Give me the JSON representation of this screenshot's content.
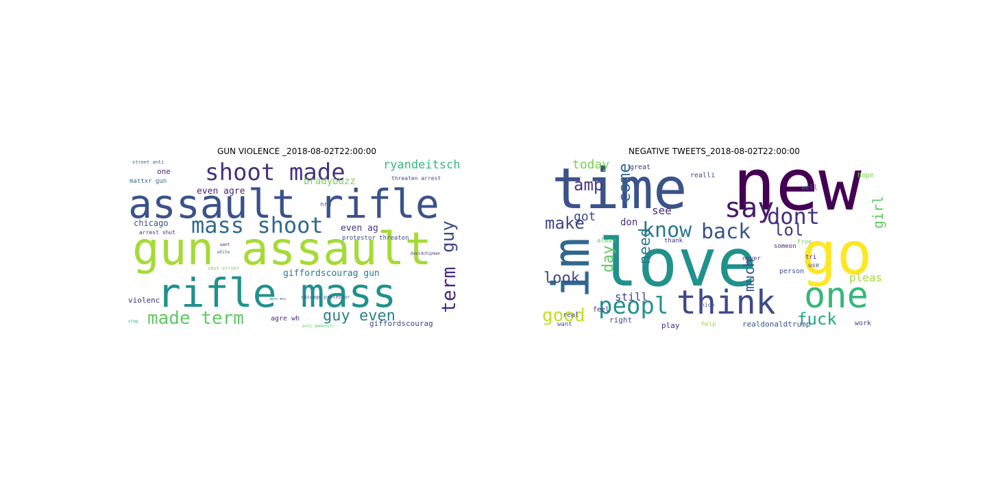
{
  "figure": {
    "left_title": "GUN VIOLENCE _2018-08-02T22:00:00",
    "right_title": "NEGATIVE TWEETS_2018-08-02T22:00:00"
  },
  "clouds": {
    "left": [
      {
        "t": "assault rifle",
        "c": "#3b528b"
      },
      {
        "t": "gun assault",
        "c": "#a5db36"
      },
      {
        "t": "rifle mass",
        "c": "#21918c"
      },
      {
        "t": "shoot made",
        "c": "#46327e"
      },
      {
        "t": "mass shoot",
        "c": "#31688e"
      },
      {
        "t": "made term",
        "c": "#5ec962"
      },
      {
        "t": "guy even",
        "c": "#26828e"
      },
      {
        "t": "term",
        "c": "#472d7b"
      },
      {
        "t": "guy",
        "c": "#3e4a89"
      },
      {
        "t": "ryandeitsch",
        "c": "#35b779"
      },
      {
        "t": "bradybuzz",
        "c": "#7ad151"
      },
      {
        "t": "giffordscourag gun",
        "c": "#2a788e"
      },
      {
        "t": "giffordscourag",
        "c": "#414487"
      },
      {
        "t": "even agre",
        "c": "#482878"
      },
      {
        "t": "even ag",
        "c": "#443983"
      },
      {
        "t": "chicago",
        "c": "#3b528b"
      },
      {
        "t": "protestor threaten",
        "c": "#3e4a89"
      },
      {
        "t": "mattxr gun",
        "c": "#31688e"
      },
      {
        "t": "one",
        "c": "#482878"
      },
      {
        "t": "threaten arrest",
        "c": "#3e4a89"
      },
      {
        "t": "violenc",
        "c": "#46327e"
      },
      {
        "t": "agre wh",
        "c": "#472d7b"
      },
      {
        "t": "chicago protestor",
        "c": "#3b528b"
      },
      {
        "t": "arrest shut",
        "c": "#472d7b"
      },
      {
        "t": "shut street",
        "c": "#7ad151"
      },
      {
        "t": "street anti",
        "c": "#31688e"
      },
      {
        "t": "nra",
        "c": "#3b528b"
      },
      {
        "t": "davidchipman",
        "c": "#46327e"
      },
      {
        "t": "anti demonstr",
        "c": "#5ec962"
      },
      {
        "t": "want",
        "c": "#482878"
      },
      {
        "t": "white",
        "c": "#3b528b"
      },
      {
        "t": "stop",
        "c": "#22a884"
      },
      {
        "t": "agre mnu",
        "c": "#2a788e"
      }
    ],
    "right": [
      {
        "t": "new",
        "c": "#440154"
      },
      {
        "t": "time",
        "c": "#3b528b"
      },
      {
        "t": "love",
        "c": "#21918c"
      },
      {
        "t": "go",
        "c": "#fde725"
      },
      {
        "t": "im",
        "c": "#31688e"
      },
      {
        "t": "one",
        "c": "#35b779"
      },
      {
        "t": "think",
        "c": "#3e4a89"
      },
      {
        "t": "say",
        "c": "#481a6c"
      },
      {
        "t": "dont",
        "c": "#46327e"
      },
      {
        "t": "know",
        "c": "#2a788e"
      },
      {
        "t": "back",
        "c": "#3b528b"
      },
      {
        "t": "peopl",
        "c": "#21918c"
      },
      {
        "t": "lol",
        "c": "#46327e"
      },
      {
        "t": "make",
        "c": "#414487"
      },
      {
        "t": "amp",
        "c": "#443983"
      },
      {
        "t": "good",
        "c": "#c2df23"
      },
      {
        "t": "look",
        "c": "#3e4a89"
      },
      {
        "t": "fuck",
        "c": "#22a884"
      },
      {
        "t": "day",
        "c": "#5ec962"
      },
      {
        "t": "come",
        "c": "#31688e"
      },
      {
        "t": "today",
        "c": "#7ad151"
      },
      {
        "t": "need",
        "c": "#2a788e"
      },
      {
        "t": "much",
        "c": "#3b528b"
      },
      {
        "t": "pleas",
        "c": "#a5db36"
      },
      {
        "t": "girl",
        "c": "#5ec962"
      },
      {
        "t": "got",
        "c": "#3e4a89"
      },
      {
        "t": "still",
        "c": "#414487"
      },
      {
        "t": "see",
        "c": "#482878"
      },
      {
        "t": "don",
        "c": "#46327e"
      },
      {
        "t": "realdonaldtrump",
        "c": "#3b528b"
      },
      {
        "t": "right",
        "c": "#3e4a89"
      },
      {
        "t": "play",
        "c": "#482878"
      },
      {
        "t": "work",
        "c": "#414487"
      },
      {
        "t": "hope",
        "c": "#7ad151"
      },
      {
        "t": "great",
        "c": "#46327e"
      },
      {
        "t": "realli",
        "c": "#3e4a89"
      },
      {
        "t": "well",
        "c": "#31688e"
      },
      {
        "t": "person",
        "c": "#3b528b"
      },
      {
        "t": "someon",
        "c": "#482878"
      },
      {
        "t": "never",
        "c": "#443983"
      },
      {
        "t": "feel",
        "c": "#482878"
      },
      {
        "t": "real",
        "c": "#3e4a89"
      },
      {
        "t": "want",
        "c": "#3b528b"
      },
      {
        "t": "help",
        "c": "#a5db36"
      },
      {
        "t": "tri",
        "c": "#482878"
      },
      {
        "t": "use",
        "c": "#3e4a89"
      },
      {
        "t": "alway",
        "c": "#5ec962"
      },
      {
        "t": "thank",
        "c": "#46327e"
      },
      {
        "t": "nice",
        "c": "#3b528b"
      },
      {
        "t": "free",
        "c": "#7ad151"
      }
    ]
  }
}
